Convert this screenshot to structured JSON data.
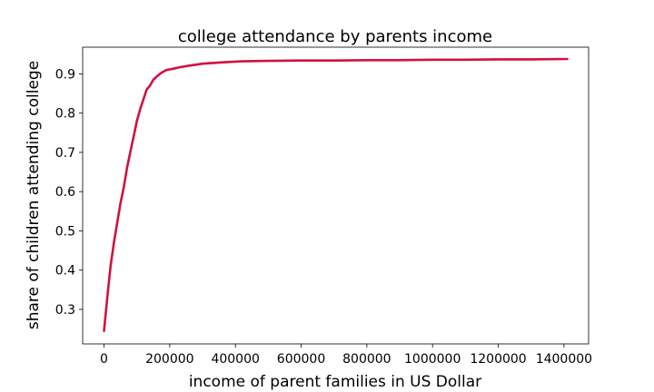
{
  "chart_data": {
    "type": "line",
    "title": "college attendance by parents income",
    "xlabel": "income of parent families in US Dollar",
    "ylabel": "share of children attending college",
    "xlim": [
      -65000,
      1475000
    ],
    "ylim": [
      0.212,
      0.968
    ],
    "xticks": [
      0,
      200000,
      400000,
      600000,
      800000,
      1000000,
      1200000,
      1400000
    ],
    "xtick_labels": [
      "0",
      "200000",
      "400000",
      "600000",
      "800000",
      "1000000",
      "1200000",
      "1400000"
    ],
    "yticks": [
      0.3,
      0.4,
      0.5,
      0.6,
      0.7,
      0.8,
      0.9
    ],
    "ytick_labels": [
      "0.3",
      "0.4",
      "0.5",
      "0.6",
      "0.7",
      "0.8",
      "0.9"
    ],
    "grid": false,
    "legend": "none",
    "series": [
      {
        "color": "#d11141",
        "x": [
          0,
          10000,
          20000,
          30000,
          40000,
          50000,
          60000,
          70000,
          80000,
          90000,
          100000,
          110000,
          120000,
          130000,
          140000,
          150000,
          160000,
          175000,
          190000,
          210000,
          230000,
          260000,
          300000,
          350000,
          420000,
          500000,
          600000,
          700000,
          800000,
          900000,
          1000000,
          1100000,
          1200000,
          1300000,
          1410000
        ],
        "y": [
          0.245,
          0.33,
          0.41,
          0.47,
          0.52,
          0.57,
          0.61,
          0.66,
          0.7,
          0.74,
          0.78,
          0.81,
          0.835,
          0.86,
          0.87,
          0.885,
          0.893,
          0.903,
          0.91,
          0.913,
          0.917,
          0.921,
          0.926,
          0.929,
          0.932,
          0.933,
          0.934,
          0.934,
          0.935,
          0.935,
          0.936,
          0.936,
          0.937,
          0.937,
          0.938
        ]
      }
    ]
  }
}
